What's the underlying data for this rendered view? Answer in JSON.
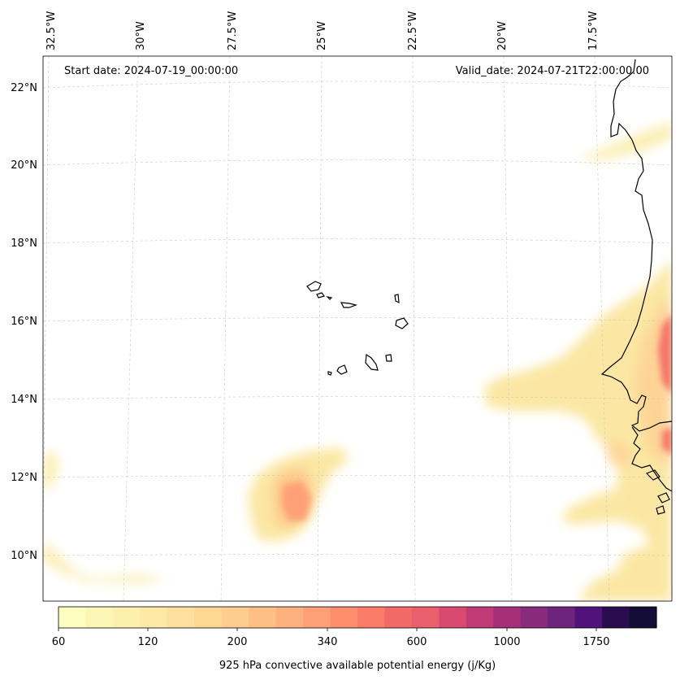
{
  "map": {
    "start_date_text": "Start date: 2024-07-19_00:00:00",
    "valid_date_text": "Valid_date: 2024-07-21T22:00:00.00",
    "lon_labels": [
      "32.5°W",
      "30°W",
      "27.5°W",
      "25°W",
      "22.5°W",
      "20°W",
      "17.5°W"
    ],
    "lat_labels": [
      "22°N",
      "20°N",
      "18°N",
      "16°N",
      "14°N",
      "12°N",
      "10°N"
    ],
    "gridlines": true,
    "coastline_color": "#000000"
  },
  "colorbar": {
    "label": "925 hPa convective available potential energy (j/Kg)",
    "tick_labels": [
      "60",
      "120",
      "200",
      "340",
      "600",
      "1000",
      "1750"
    ],
    "colors": [
      "#fcfdbf",
      "#fcf6b6",
      "#fdefae",
      "#fde8a6",
      "#fde09d",
      "#fed795",
      "#fecc8e",
      "#febf87",
      "#feb07f",
      "#fea077",
      "#fd8f6e",
      "#f97b68",
      "#f26a67",
      "#e95f6c",
      "#d94a71",
      "#c13a75",
      "#a62f79",
      "#892b7c",
      "#6e247c",
      "#51137b",
      "#2a0d4e",
      "#140e36"
    ]
  }
}
